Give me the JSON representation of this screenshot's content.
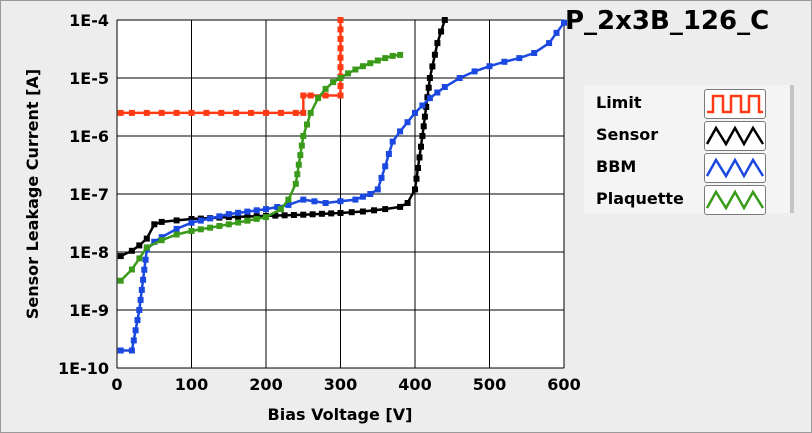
{
  "chart_data": {
    "type": "line",
    "title": "P_2x3B_126_C",
    "xlabel": "Bias Voltage [V]",
    "ylabel": "Sensor Leakage Current [A]",
    "xlim": [
      0,
      600
    ],
    "ylim": [
      1e-10,
      0.0001
    ],
    "yscale": "log",
    "grid": true,
    "legend_position": "right",
    "x_ticks": [
      "0",
      "100",
      "200",
      "300",
      "400",
      "500",
      "600"
    ],
    "y_ticks": [
      "1E-10",
      "1E-9",
      "1E-8",
      "1E-7",
      "1E-6",
      "1E-5",
      "1E-4"
    ],
    "series": [
      {
        "name": "Limit",
        "color": "#ff3a14",
        "x": [
          5,
          20,
          40,
          60,
          80,
          100,
          120,
          140,
          160,
          180,
          200,
          220,
          240,
          250,
          250,
          260,
          280,
          300,
          300
        ],
        "y": [
          2.5e-06,
          2.5e-06,
          2.5e-06,
          2.5e-06,
          2.5e-06,
          2.5e-06,
          2.5e-06,
          2.5e-06,
          2.5e-06,
          2.5e-06,
          2.5e-06,
          2.5e-06,
          2.5e-06,
          2.5e-06,
          5e-06,
          5e-06,
          5e-06,
          5e-06,
          0.0001
        ]
      },
      {
        "name": "Sensor",
        "color": "#000000",
        "x": [
          5,
          20,
          30,
          40,
          50,
          60,
          80,
          100,
          150,
          200,
          250,
          300,
          330,
          360,
          380,
          390,
          400,
          410,
          420,
          430,
          440
        ],
        "y": [
          8.5e-09,
          1.05e-08,
          1.3e-08,
          1.7e-08,
          3e-08,
          3.3e-08,
          3.5e-08,
          3.7e-08,
          4e-08,
          4.2e-08,
          4.4e-08,
          4.7e-08,
          5e-08,
          5.5e-08,
          6e-08,
          7e-08,
          1.2e-07,
          1e-06,
          1e-05,
          4e-05,
          0.0001
        ]
      },
      {
        "name": "BBM",
        "color": "#1a48e0",
        "x": [
          5,
          20,
          30,
          40,
          50,
          60,
          80,
          100,
          150,
          200,
          230,
          250,
          280,
          300,
          320,
          330,
          340,
          350,
          360,
          370,
          380,
          400,
          420,
          440,
          460,
          480,
          500,
          520,
          540,
          560,
          580,
          600
        ],
        "y": [
          2e-10,
          2e-10,
          1e-09,
          1.1e-08,
          1.5e-08,
          1.8e-08,
          2.5e-08,
          3.2e-08,
          4.5e-08,
          5.5e-08,
          6.5e-08,
          8e-08,
          7e-08,
          7.5e-08,
          8e-08,
          9e-08,
          1e-07,
          1.2e-07,
          3e-07,
          8e-07,
          1.2e-06,
          2.5e-06,
          4.5e-06,
          7e-06,
          1e-05,
          1.3e-05,
          1.6e-05,
          1.9e-05,
          2.2e-05,
          2.7e-05,
          4e-05,
          9e-05
        ]
      },
      {
        "name": "Plaquette",
        "color": "#3a9a1a",
        "x": [
          5,
          20,
          40,
          60,
          80,
          100,
          150,
          200,
          220,
          230,
          240,
          250,
          260,
          270,
          280,
          290,
          300,
          310,
          320,
          330,
          340,
          350,
          360,
          370,
          380
        ],
        "y": [
          3.2e-09,
          5e-09,
          1.2e-08,
          1.6e-08,
          2e-08,
          2.3e-08,
          3e-08,
          4e-08,
          5.5e-08,
          8e-08,
          1.5e-07,
          1e-06,
          2.5e-06,
          4.5e-06,
          6.5e-06,
          8.5e-06,
          1e-05,
          1.2e-05,
          1.4e-05,
          1.6e-05,
          1.8e-05,
          2e-05,
          2.2e-05,
          2.4e-05,
          2.5e-05
        ]
      }
    ]
  }
}
